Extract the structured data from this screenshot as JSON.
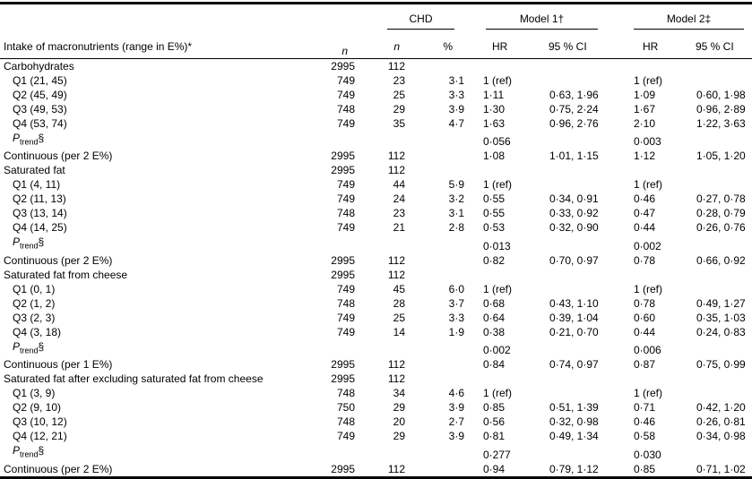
{
  "table": {
    "headers": {
      "label": "Intake of macronutrients (range in E%)*",
      "n": "n",
      "chd": "CHD",
      "chd_n": "n",
      "chd_pct": "%",
      "model1": "Model 1†",
      "model2": "Model 2‡",
      "hr1": "HR",
      "ci1": "95 % CI",
      "hr2": "HR",
      "ci2": "95 % CI"
    },
    "rows": [
      {
        "label": "Carbohydrates",
        "indent": false,
        "ptrend": false,
        "n": "2995",
        "chd_n": "112",
        "pct": "",
        "hr1": "",
        "ci1": "",
        "hr2": "",
        "ci2": ""
      },
      {
        "label": "Q1 (21, 45)",
        "indent": true,
        "ptrend": false,
        "n": "749",
        "chd_n": "23",
        "pct": "3·1",
        "hr1": "1 (ref)",
        "ci1": "",
        "hr2": "1 (ref)",
        "ci2": ""
      },
      {
        "label": "Q2 (45, 49)",
        "indent": true,
        "ptrend": false,
        "n": "749",
        "chd_n": "25",
        "pct": "3·3",
        "hr1": "1·11",
        "ci1": "0·63, 1·96",
        "hr2": "1·09",
        "ci2": "0·60, 1·98"
      },
      {
        "label": "Q3 (49, 53)",
        "indent": true,
        "ptrend": false,
        "n": "748",
        "chd_n": "29",
        "pct": "3·9",
        "hr1": "1·30",
        "ci1": "0·75, 2·24",
        "hr2": "1·67",
        "ci2": "0·96, 2·89"
      },
      {
        "label": "Q4 (53, 74)",
        "indent": true,
        "ptrend": false,
        "n": "749",
        "chd_n": "35",
        "pct": "4·7",
        "hr1": "1·63",
        "ci1": "0·96, 2·76",
        "hr2": "2·10",
        "ci2": "1·22, 3·63"
      },
      {
        "label": "Ptrend§",
        "indent": true,
        "ptrend": true,
        "n": "",
        "chd_n": "",
        "pct": "",
        "hr1": "0·056",
        "ci1": "",
        "hr2": "0·003",
        "ci2": ""
      },
      {
        "label": "Continuous (per 2 E%)",
        "indent": false,
        "ptrend": false,
        "n": "2995",
        "chd_n": "112",
        "pct": "",
        "hr1": "1·08",
        "ci1": "1·01, 1·15",
        "hr2": "1·12",
        "ci2": "1·05, 1·20"
      },
      {
        "label": "Saturated fat",
        "indent": false,
        "ptrend": false,
        "n": "2995",
        "chd_n": "112",
        "pct": "",
        "hr1": "",
        "ci1": "",
        "hr2": "",
        "ci2": ""
      },
      {
        "label": "Q1 (4, 11)",
        "indent": true,
        "ptrend": false,
        "n": "749",
        "chd_n": "44",
        "pct": "5·9",
        "hr1": "1 (ref)",
        "ci1": "",
        "hr2": "1 (ref)",
        "ci2": ""
      },
      {
        "label": "Q2 (11, 13)",
        "indent": true,
        "ptrend": false,
        "n": "749",
        "chd_n": "24",
        "pct": "3·2",
        "hr1": "0·55",
        "ci1": "0·34, 0·91",
        "hr2": "0·46",
        "ci2": "0·27, 0·78"
      },
      {
        "label": "Q3 (13, 14)",
        "indent": true,
        "ptrend": false,
        "n": "748",
        "chd_n": "23",
        "pct": "3·1",
        "hr1": "0·55",
        "ci1": "0·33, 0·92",
        "hr2": "0·47",
        "ci2": "0·28, 0·79"
      },
      {
        "label": "Q4 (14, 25)",
        "indent": true,
        "ptrend": false,
        "n": "749",
        "chd_n": "21",
        "pct": "2·8",
        "hr1": "0·53",
        "ci1": "0·32, 0·90",
        "hr2": "0·44",
        "ci2": "0·26, 0·76"
      },
      {
        "label": "Ptrend§",
        "indent": true,
        "ptrend": true,
        "n": "",
        "chd_n": "",
        "pct": "",
        "hr1": "0·013",
        "ci1": "",
        "hr2": "0·002",
        "ci2": ""
      },
      {
        "label": "Continuous (per 2 E%)",
        "indent": false,
        "ptrend": false,
        "n": "2995",
        "chd_n": "112",
        "pct": "",
        "hr1": "0·82",
        "ci1": "0·70, 0·97",
        "hr2": "0·78",
        "ci2": "0·66, 0·92"
      },
      {
        "label": "Saturated fat from cheese",
        "indent": false,
        "ptrend": false,
        "n": "2995",
        "chd_n": "112",
        "pct": "",
        "hr1": "",
        "ci1": "",
        "hr2": "",
        "ci2": ""
      },
      {
        "label": "Q1 (0, 1)",
        "indent": true,
        "ptrend": false,
        "n": "749",
        "chd_n": "45",
        "pct": "6·0",
        "hr1": "1 (ref)",
        "ci1": "",
        "hr2": "1 (ref)",
        "ci2": ""
      },
      {
        "label": "Q2 (1, 2)",
        "indent": true,
        "ptrend": false,
        "n": "748",
        "chd_n": "28",
        "pct": "3·7",
        "hr1": "0·68",
        "ci1": "0·43, 1·10",
        "hr2": "0·78",
        "ci2": "0·49, 1·27"
      },
      {
        "label": "Q3 (2, 3)",
        "indent": true,
        "ptrend": false,
        "n": "749",
        "chd_n": "25",
        "pct": "3·3",
        "hr1": "0·64",
        "ci1": "0·39, 1·04",
        "hr2": "0·60",
        "ci2": "0·35, 1·03"
      },
      {
        "label": "Q4 (3, 18)",
        "indent": true,
        "ptrend": false,
        "n": "749",
        "chd_n": "14",
        "pct": "1·9",
        "hr1": "0·38",
        "ci1": "0·21, 0·70",
        "hr2": "0·44",
        "ci2": "0·24, 0·83"
      },
      {
        "label": "Ptrend§",
        "indent": true,
        "ptrend": true,
        "n": "",
        "chd_n": "",
        "pct": "",
        "hr1": "0·002",
        "ci1": "",
        "hr2": "0·006",
        "ci2": ""
      },
      {
        "label": "Continuous (per 1 E%)",
        "indent": false,
        "ptrend": false,
        "n": "2995",
        "chd_n": "112",
        "pct": "",
        "hr1": "0·84",
        "ci1": "0·74, 0·97",
        "hr2": "0·87",
        "ci2": "0·75, 0·99"
      },
      {
        "label": "Saturated fat after excluding saturated fat from cheese",
        "indent": false,
        "ptrend": false,
        "n": "2995",
        "chd_n": "112",
        "pct": "",
        "hr1": "",
        "ci1": "",
        "hr2": "",
        "ci2": ""
      },
      {
        "label": "Q1 (3, 9)",
        "indent": true,
        "ptrend": false,
        "n": "748",
        "chd_n": "34",
        "pct": "4·6",
        "hr1": "1 (ref)",
        "ci1": "",
        "hr2": "1 (ref)",
        "ci2": ""
      },
      {
        "label": "Q2 (9, 10)",
        "indent": true,
        "ptrend": false,
        "n": "750",
        "chd_n": "29",
        "pct": "3·9",
        "hr1": "0·85",
        "ci1": "0·51, 1·39",
        "hr2": "0·71",
        "ci2": "0·42, 1·20"
      },
      {
        "label": "Q3 (10, 12)",
        "indent": true,
        "ptrend": false,
        "n": "748",
        "chd_n": "20",
        "pct": "2·7",
        "hr1": "0·56",
        "ci1": "0·32, 0·98",
        "hr2": "0·46",
        "ci2": "0·26, 0·81"
      },
      {
        "label": "Q4 (12, 21)",
        "indent": true,
        "ptrend": false,
        "n": "749",
        "chd_n": "29",
        "pct": "3·9",
        "hr1": "0·81",
        "ci1": "0·49, 1·34",
        "hr2": "0·58",
        "ci2": "0·34, 0·98"
      },
      {
        "label": "Ptrend§",
        "indent": true,
        "ptrend": true,
        "n": "",
        "chd_n": "",
        "pct": "",
        "hr1": "0·277",
        "ci1": "",
        "hr2": "0·030",
        "ci2": ""
      },
      {
        "label": "Continuous (per 2 E%)",
        "indent": false,
        "ptrend": false,
        "n": "2995",
        "chd_n": "112",
        "pct": "",
        "hr1": "0·94",
        "ci1": "0·79, 1·12",
        "hr2": "0·85",
        "ci2": "0·71, 1·02"
      }
    ]
  },
  "colors": {
    "text": "#000000",
    "rule": "#000000",
    "background": "#ffffff"
  }
}
